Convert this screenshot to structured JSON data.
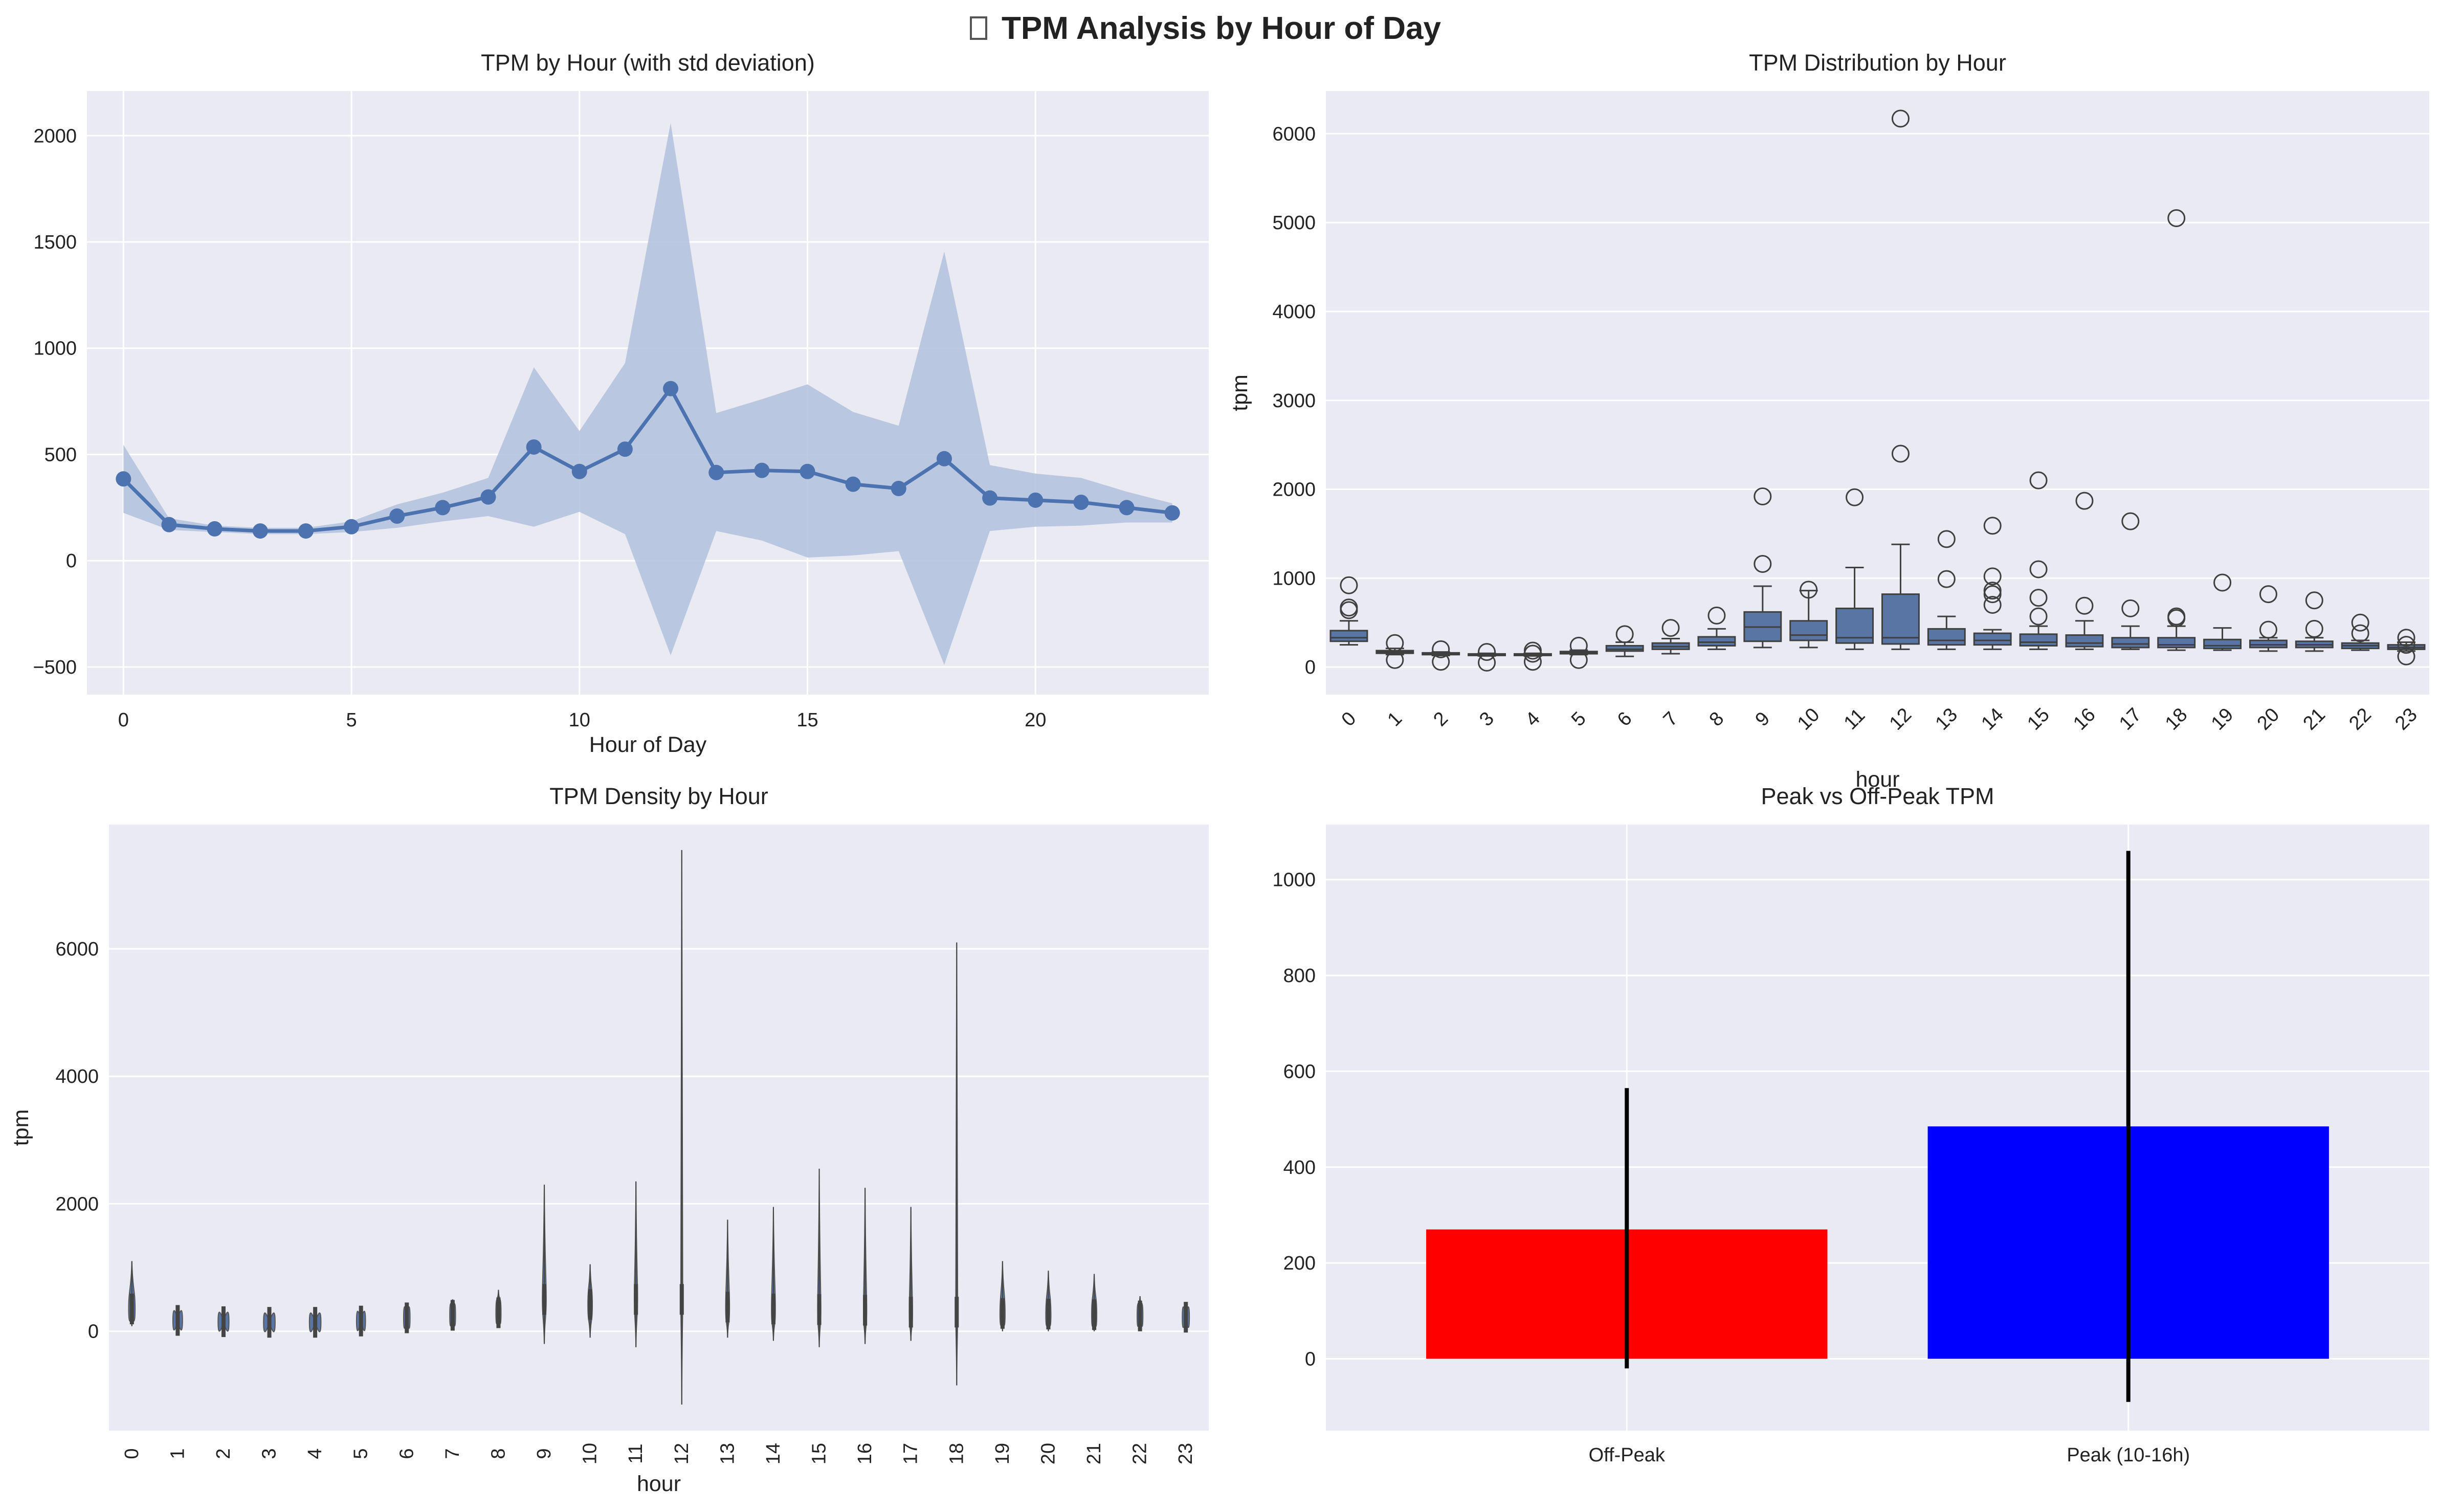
{
  "figure": {
    "suptitle": "TPM Analysis by Hour of Day",
    "title_icon": "missing-glyph-icon",
    "colors": {
      "background": "#eaeaf2",
      "grid": "#ffffff",
      "primary": "#4c72b0",
      "band": "#b5c3de",
      "box": "#5975a4",
      "offpeak": "#ff0000",
      "peak": "#0000ff"
    }
  },
  "chart_data": [
    {
      "type": "line",
      "title": "TPM by Hour (with std deviation)",
      "xlabel": "Hour of Day",
      "ylabel": "",
      "x": [
        0,
        1,
        2,
        3,
        4,
        5,
        6,
        7,
        8,
        9,
        10,
        11,
        12,
        13,
        14,
        15,
        16,
        17,
        18,
        19,
        20,
        21,
        22,
        23
      ],
      "series": [
        {
          "values": [
            385,
            170,
            150,
            140,
            140,
            160,
            210,
            250,
            300,
            535,
            420,
            525,
            810,
            415,
            425,
            420,
            360,
            340,
            480,
            295,
            285,
            275,
            250,
            225
          ]
        }
      ],
      "band_lower": [
        225,
        145,
        135,
        125,
        125,
        135,
        155,
        185,
        210,
        160,
        230,
        125,
        -445,
        140,
        95,
        15,
        25,
        45,
        -490,
        140,
        160,
        165,
        180,
        180
      ],
      "band_upper": [
        545,
        200,
        165,
        155,
        155,
        185,
        265,
        320,
        390,
        910,
        610,
        930,
        2060,
        695,
        760,
        830,
        700,
        635,
        1455,
        450,
        410,
        390,
        325,
        270
      ],
      "xticks": [
        0,
        5,
        10,
        15,
        20
      ],
      "yticks": [
        -500,
        0,
        500,
        1000,
        1500,
        2000
      ],
      "xlim": [
        -0.8,
        23.8
      ],
      "ylim": [
        -630,
        2210
      ],
      "grid": true
    },
    {
      "type": "box",
      "title": "TPM Distribution by Hour",
      "xlabel": "hour",
      "ylabel": "tpm",
      "categories": [
        "0",
        "1",
        "2",
        "3",
        "4",
        "5",
        "6",
        "7",
        "8",
        "9",
        "10",
        "11",
        "12",
        "13",
        "14",
        "15",
        "16",
        "17",
        "18",
        "19",
        "20",
        "21",
        "22",
        "23"
      ],
      "boxes": [
        {
          "whislo": 250,
          "q1": 290,
          "med": 330,
          "q3": 410,
          "whishi": 520,
          "fliers": [
            920,
            670,
            640
          ]
        },
        {
          "whislo": 140,
          "q1": 155,
          "med": 170,
          "q3": 185,
          "whishi": 210,
          "fliers": [
            270,
            80
          ]
        },
        {
          "whislo": 130,
          "q1": 140,
          "med": 150,
          "q3": 160,
          "whishi": 170,
          "fliers": [
            200,
            60
          ]
        },
        {
          "whislo": 125,
          "q1": 133,
          "med": 140,
          "q3": 148,
          "whishi": 155,
          "fliers": [
            170,
            50
          ]
        },
        {
          "whislo": 125,
          "q1": 133,
          "med": 140,
          "q3": 148,
          "whishi": 155,
          "fliers": [
            185,
            150,
            60
          ]
        },
        {
          "whislo": 140,
          "q1": 150,
          "med": 160,
          "q3": 175,
          "whishi": 190,
          "fliers": [
            240,
            80
          ]
        },
        {
          "whislo": 120,
          "q1": 180,
          "med": 200,
          "q3": 240,
          "whishi": 280,
          "fliers": [
            370
          ]
        },
        {
          "whislo": 150,
          "q1": 200,
          "med": 230,
          "q3": 270,
          "whishi": 320,
          "fliers": [
            440
          ]
        },
        {
          "whislo": 200,
          "q1": 240,
          "med": 280,
          "q3": 340,
          "whishi": 430,
          "fliers": [
            580
          ]
        },
        {
          "whislo": 220,
          "q1": 290,
          "med": 450,
          "q3": 620,
          "whishi": 910,
          "fliers": [
            1920,
            1160
          ]
        },
        {
          "whislo": 220,
          "q1": 300,
          "med": 360,
          "q3": 520,
          "whishi": 860,
          "fliers": [
            870
          ]
        },
        {
          "whislo": 200,
          "q1": 270,
          "med": 330,
          "q3": 660,
          "whishi": 1120,
          "fliers": [
            1910
          ]
        },
        {
          "whislo": 200,
          "q1": 260,
          "med": 330,
          "q3": 820,
          "whishi": 1380,
          "fliers": [
            6170,
            2400
          ]
        },
        {
          "whislo": 200,
          "q1": 250,
          "med": 300,
          "q3": 430,
          "whishi": 570,
          "fliers": [
            1440,
            990
          ]
        },
        {
          "whislo": 200,
          "q1": 250,
          "med": 300,
          "q3": 380,
          "whishi": 420,
          "fliers": [
            1590,
            1020,
            860,
            820,
            700
          ]
        },
        {
          "whislo": 200,
          "q1": 240,
          "med": 280,
          "q3": 370,
          "whishi": 460,
          "fliers": [
            2100,
            1100,
            780,
            570
          ]
        },
        {
          "whislo": 200,
          "q1": 230,
          "med": 270,
          "q3": 360,
          "whishi": 520,
          "fliers": [
            1870,
            690
          ]
        },
        {
          "whislo": 200,
          "q1": 220,
          "med": 260,
          "q3": 330,
          "whishi": 460,
          "fliers": [
            1640,
            660
          ]
        },
        {
          "whislo": 190,
          "q1": 220,
          "med": 250,
          "q3": 330,
          "whishi": 460,
          "fliers": [
            5050,
            570,
            550
          ]
        },
        {
          "whislo": 190,
          "q1": 210,
          "med": 240,
          "q3": 310,
          "whishi": 440,
          "fliers": [
            950
          ]
        },
        {
          "whislo": 180,
          "q1": 220,
          "med": 250,
          "q3": 300,
          "whishi": 330,
          "fliers": [
            820,
            420
          ]
        },
        {
          "whislo": 180,
          "q1": 220,
          "med": 250,
          "q3": 290,
          "whishi": 330,
          "fliers": [
            750,
            430
          ]
        },
        {
          "whislo": 190,
          "q1": 210,
          "med": 240,
          "q3": 270,
          "whishi": 300,
          "fliers": [
            500,
            380
          ]
        },
        {
          "whislo": 180,
          "q1": 200,
          "med": 220,
          "q3": 250,
          "whishi": 280,
          "fliers": [
            330,
            250,
            120
          ]
        }
      ],
      "yticks": [
        0,
        1000,
        2000,
        3000,
        4000,
        5000,
        6000
      ],
      "ylim": [
        -310,
        6480
      ],
      "grid": true
    },
    {
      "type": "violin",
      "title": "TPM Density by Hour",
      "xlabel": "hour",
      "ylabel": "tpm",
      "categories": [
        "0",
        "1",
        "2",
        "3",
        "4",
        "5",
        "6",
        "7",
        "8",
        "9",
        "10",
        "11",
        "12",
        "13",
        "14",
        "15",
        "16",
        "17",
        "18",
        "19",
        "20",
        "21",
        "22",
        "23"
      ],
      "violins": [
        {
          "min": 80,
          "max": 1100,
          "center": 350,
          "width": 0.5
        },
        {
          "min": 110,
          "max": 250,
          "center": 170,
          "width": 0.75
        },
        {
          "min": 100,
          "max": 200,
          "center": 150,
          "width": 0.85
        },
        {
          "min": 100,
          "max": 180,
          "center": 140,
          "width": 0.9
        },
        {
          "min": 100,
          "max": 180,
          "center": 140,
          "width": 0.9
        },
        {
          "min": 100,
          "max": 240,
          "center": 160,
          "width": 0.7
        },
        {
          "min": 70,
          "max": 400,
          "center": 210,
          "width": 0.5
        },
        {
          "min": 90,
          "max": 500,
          "center": 250,
          "width": 0.45
        },
        {
          "min": 100,
          "max": 650,
          "center": 290,
          "width": 0.4
        },
        {
          "min": -200,
          "max": 2300,
          "center": 500,
          "width": 0.3
        },
        {
          "min": -100,
          "max": 1050,
          "center": 420,
          "width": 0.35
        },
        {
          "min": -250,
          "max": 2350,
          "center": 500,
          "width": 0.25
        },
        {
          "min": -1150,
          "max": 7550,
          "center": 500,
          "width": 0.15
        },
        {
          "min": -100,
          "max": 1750,
          "center": 380,
          "width": 0.3
        },
        {
          "min": -150,
          "max": 1950,
          "center": 350,
          "width": 0.3
        },
        {
          "min": -250,
          "max": 2550,
          "center": 340,
          "width": 0.25
        },
        {
          "min": -200,
          "max": 2250,
          "center": 330,
          "width": 0.25
        },
        {
          "min": -150,
          "max": 1950,
          "center": 300,
          "width": 0.25
        },
        {
          "min": -850,
          "max": 6100,
          "center": 300,
          "width": 0.15
        },
        {
          "min": 0,
          "max": 1100,
          "center": 280,
          "width": 0.4
        },
        {
          "min": 0,
          "max": 950,
          "center": 270,
          "width": 0.4
        },
        {
          "min": 0,
          "max": 900,
          "center": 260,
          "width": 0.4
        },
        {
          "min": 100,
          "max": 550,
          "center": 240,
          "width": 0.45
        },
        {
          "min": 100,
          "max": 350,
          "center": 220,
          "width": 0.55
        }
      ],
      "yticks": [
        0,
        2000,
        4000,
        6000
      ],
      "ylim": [
        -1560,
        7950
      ],
      "grid": true
    },
    {
      "type": "bar",
      "title": "Peak vs Off-Peak TPM",
      "xlabel": "",
      "ylabel": "",
      "categories": [
        "Off-Peak",
        "Peak (10-16h)"
      ],
      "values": [
        270,
        485
      ],
      "error_lower": [
        -20,
        -90
      ],
      "error_upper": [
        565,
        1060
      ],
      "colors": [
        "#ff0000",
        "#0000ff"
      ],
      "yticks": [
        0,
        200,
        400,
        600,
        800,
        1000
      ],
      "ylim": [
        -150,
        1115
      ],
      "grid": true
    }
  ]
}
